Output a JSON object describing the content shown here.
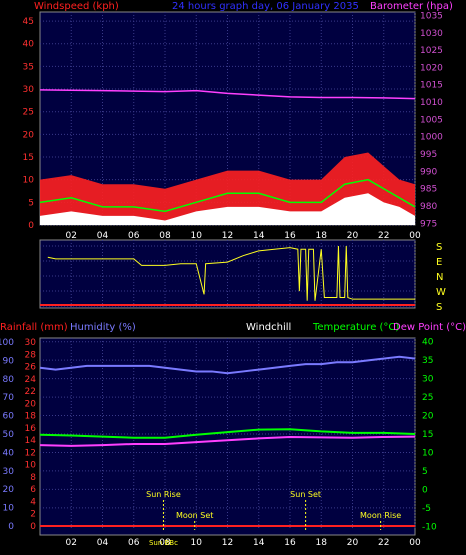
{
  "header": {
    "windspeed_label": "Windspeed (kph)",
    "graph_title": "24 hours graph day, 06 January 2035",
    "barometer_label": "Barometer (hpa)"
  },
  "colors": {
    "red": "#ff2020",
    "white": "#ffffff",
    "green": "#00ff00",
    "yellow": "#ffff20",
    "magenta": "#ff40ff",
    "blue": "#7a7aff",
    "panel": "#000040",
    "axis_red": "#ff3030",
    "axis_magenta": "#d050d0"
  },
  "compass": {
    "letters": [
      "S",
      "E",
      "N",
      "W",
      "S"
    ]
  },
  "lower_header": {
    "rainfall": "Rainfall (mm)",
    "humidity": "Humidity (%)",
    "windchill": "Windchill",
    "temperature": "Temperature (°C)",
    "dewpoint": "Dew Point (°C)"
  },
  "chart_data": [
    {
      "type": "line",
      "name": "wind-barometer",
      "x_ticks": [
        "02",
        "04",
        "06",
        "08",
        "10",
        "12",
        "14",
        "16",
        "18",
        "20",
        "22",
        "00"
      ],
      "y_left": {
        "label": "Windspeed (kph)",
        "ticks": [
          0,
          5,
          10,
          15,
          20,
          25,
          30,
          35,
          40,
          45
        ],
        "range": [
          0,
          47
        ]
      },
      "y_right": {
        "label": "Barometer (hpa)",
        "ticks": [
          975,
          980,
          985,
          990,
          995,
          1000,
          1005,
          1010,
          1015,
          1020,
          1025,
          1030,
          1035
        ],
        "range": [
          974.5,
          1036
        ]
      },
      "barometer": [
        [
          0,
          1013.5
        ],
        [
          4,
          1013.3
        ],
        [
          8,
          1013.0
        ],
        [
          10,
          1013.3
        ],
        [
          12,
          1012.5
        ],
        [
          14,
          1012.0
        ],
        [
          16,
          1011.5
        ],
        [
          18,
          1011.3
        ],
        [
          20,
          1011.3
        ],
        [
          22,
          1011.2
        ],
        [
          24,
          1011.0
        ]
      ],
      "wind_gust_envelope": [
        [
          0,
          10
        ],
        [
          2,
          11
        ],
        [
          4,
          9
        ],
        [
          6,
          9
        ],
        [
          8,
          8
        ],
        [
          10,
          10
        ],
        [
          12,
          12
        ],
        [
          14,
          12
        ],
        [
          16,
          10
        ],
        [
          18,
          10
        ],
        [
          19.5,
          15
        ],
        [
          21,
          16
        ],
        [
          22,
          13
        ],
        [
          23,
          10
        ],
        [
          24,
          9
        ]
      ],
      "wind_avg": [
        [
          0,
          5
        ],
        [
          2,
          6
        ],
        [
          4,
          4
        ],
        [
          6,
          4
        ],
        [
          8,
          3
        ],
        [
          10,
          5
        ],
        [
          12,
          7
        ],
        [
          14,
          7
        ],
        [
          16,
          5
        ],
        [
          18,
          5
        ],
        [
          19.5,
          9
        ],
        [
          21,
          10
        ],
        [
          22,
          8
        ],
        [
          23,
          6
        ],
        [
          24,
          4
        ]
      ],
      "wind_speed": [
        [
          0,
          2
        ],
        [
          2,
          3
        ],
        [
          4,
          2
        ],
        [
          6,
          2
        ],
        [
          8,
          1
        ],
        [
          10,
          3
        ],
        [
          12,
          4
        ],
        [
          14,
          4
        ],
        [
          16,
          3
        ],
        [
          18,
          3
        ],
        [
          19.5,
          6
        ],
        [
          21,
          7
        ],
        [
          22,
          5
        ],
        [
          23,
          4
        ],
        [
          24,
          2
        ]
      ]
    },
    {
      "type": "line",
      "name": "wind-direction",
      "y_ticks": [
        "S",
        "E",
        "N",
        "W",
        "S"
      ],
      "direction": [
        [
          0.5,
          145
        ],
        [
          1,
          140
        ],
        [
          2,
          140
        ],
        [
          3,
          140
        ],
        [
          4,
          140
        ],
        [
          5,
          140
        ],
        [
          6,
          140
        ],
        [
          6.5,
          120
        ],
        [
          8,
          120
        ],
        [
          9,
          125
        ],
        [
          10,
          125
        ],
        [
          10.5,
          30
        ],
        [
          10.6,
          125
        ],
        [
          12,
          130
        ],
        [
          13,
          150
        ],
        [
          14,
          165
        ],
        [
          15,
          170
        ],
        [
          16,
          175
        ],
        [
          16.5,
          170
        ],
        [
          16.6,
          40
        ],
        [
          16.7,
          170
        ],
        [
          17,
          170
        ],
        [
          17.1,
          10
        ],
        [
          17.2,
          170
        ],
        [
          17.5,
          170
        ],
        [
          17.6,
          10
        ],
        [
          18,
          170
        ],
        [
          18.2,
          20
        ],
        [
          19,
          20
        ],
        [
          19.1,
          180
        ],
        [
          19.2,
          20
        ],
        [
          19.5,
          20
        ],
        [
          19.6,
          180
        ],
        [
          19.7,
          20
        ],
        [
          20,
          15
        ],
        [
          22,
          15
        ],
        [
          23,
          15
        ],
        [
          24,
          15
        ]
      ],
      "low_speed": [
        [
          0,
          5
        ],
        [
          24,
          5
        ]
      ]
    },
    {
      "type": "line",
      "name": "temperature-humidity",
      "x_ticks": [
        "02",
        "04",
        "06",
        "08",
        "10",
        "12",
        "14",
        "16",
        "18",
        "20",
        "22",
        "00"
      ],
      "y_humidity": {
        "label": "Humidity (%)",
        "ticks": [
          0,
          10,
          20,
          30,
          40,
          50,
          60,
          70,
          80,
          90,
          100
        ]
      },
      "y_rainfall": {
        "label": "Rainfall (mm)",
        "ticks": [
          0,
          2,
          4,
          6,
          8,
          10,
          12,
          14,
          16,
          18,
          20,
          22,
          24,
          26,
          28,
          30
        ]
      },
      "y_temperature": {
        "label": "Temperature (°C)",
        "ticks": [
          -10,
          -5,
          0,
          5,
          10,
          15,
          20,
          25,
          30,
          35,
          40
        ],
        "range": [
          -11,
          41
        ]
      },
      "humidity": [
        [
          0,
          86
        ],
        [
          1,
          85
        ],
        [
          2,
          86
        ],
        [
          3,
          87
        ],
        [
          4,
          87
        ],
        [
          5,
          87
        ],
        [
          6,
          87
        ],
        [
          7,
          87
        ],
        [
          8,
          86
        ],
        [
          9,
          85
        ],
        [
          10,
          84
        ],
        [
          11,
          84
        ],
        [
          12,
          83
        ],
        [
          13,
          84
        ],
        [
          14,
          85
        ],
        [
          15,
          86
        ],
        [
          16,
          87
        ],
        [
          17,
          88
        ],
        [
          18,
          88
        ],
        [
          19,
          89
        ],
        [
          20,
          89
        ],
        [
          21,
          90
        ],
        [
          22,
          91
        ],
        [
          23,
          92
        ],
        [
          24,
          91
        ]
      ],
      "temperature": [
        [
          0,
          14.8
        ],
        [
          2,
          14.6
        ],
        [
          4,
          14.3
        ],
        [
          6,
          14.0
        ],
        [
          7,
          14.0
        ],
        [
          8,
          14.0
        ],
        [
          10,
          14.8
        ],
        [
          12,
          15.5
        ],
        [
          14,
          16.2
        ],
        [
          16,
          16.3
        ],
        [
          18,
          15.7
        ],
        [
          20,
          15.3
        ],
        [
          22,
          15.3
        ],
        [
          24,
          15.0
        ]
      ],
      "dewpoint": [
        [
          0,
          12.0
        ],
        [
          2,
          11.8
        ],
        [
          4,
          12.0
        ],
        [
          6,
          12.3
        ],
        [
          8,
          12.3
        ],
        [
          10,
          12.8
        ],
        [
          12,
          13.3
        ],
        [
          14,
          13.8
        ],
        [
          16,
          14.2
        ],
        [
          18,
          14.1
        ],
        [
          20,
          14.0
        ],
        [
          22,
          14.2
        ],
        [
          24,
          14.3
        ]
      ],
      "rainfall": [
        [
          0,
          0
        ],
        [
          24,
          0
        ]
      ],
      "events": [
        {
          "label": "Sun Rise",
          "x": 7.9,
          "row": 1
        },
        {
          "label": "Sun Set",
          "x": 17.0,
          "row": 1
        },
        {
          "label": "Moon Set",
          "x": 9.9,
          "row": 2
        },
        {
          "label": "Moon Rise",
          "x": 21.8,
          "row": 2
        },
        {
          "label": "Sun BBc",
          "x": 7.9,
          "row": 3
        }
      ]
    }
  ]
}
